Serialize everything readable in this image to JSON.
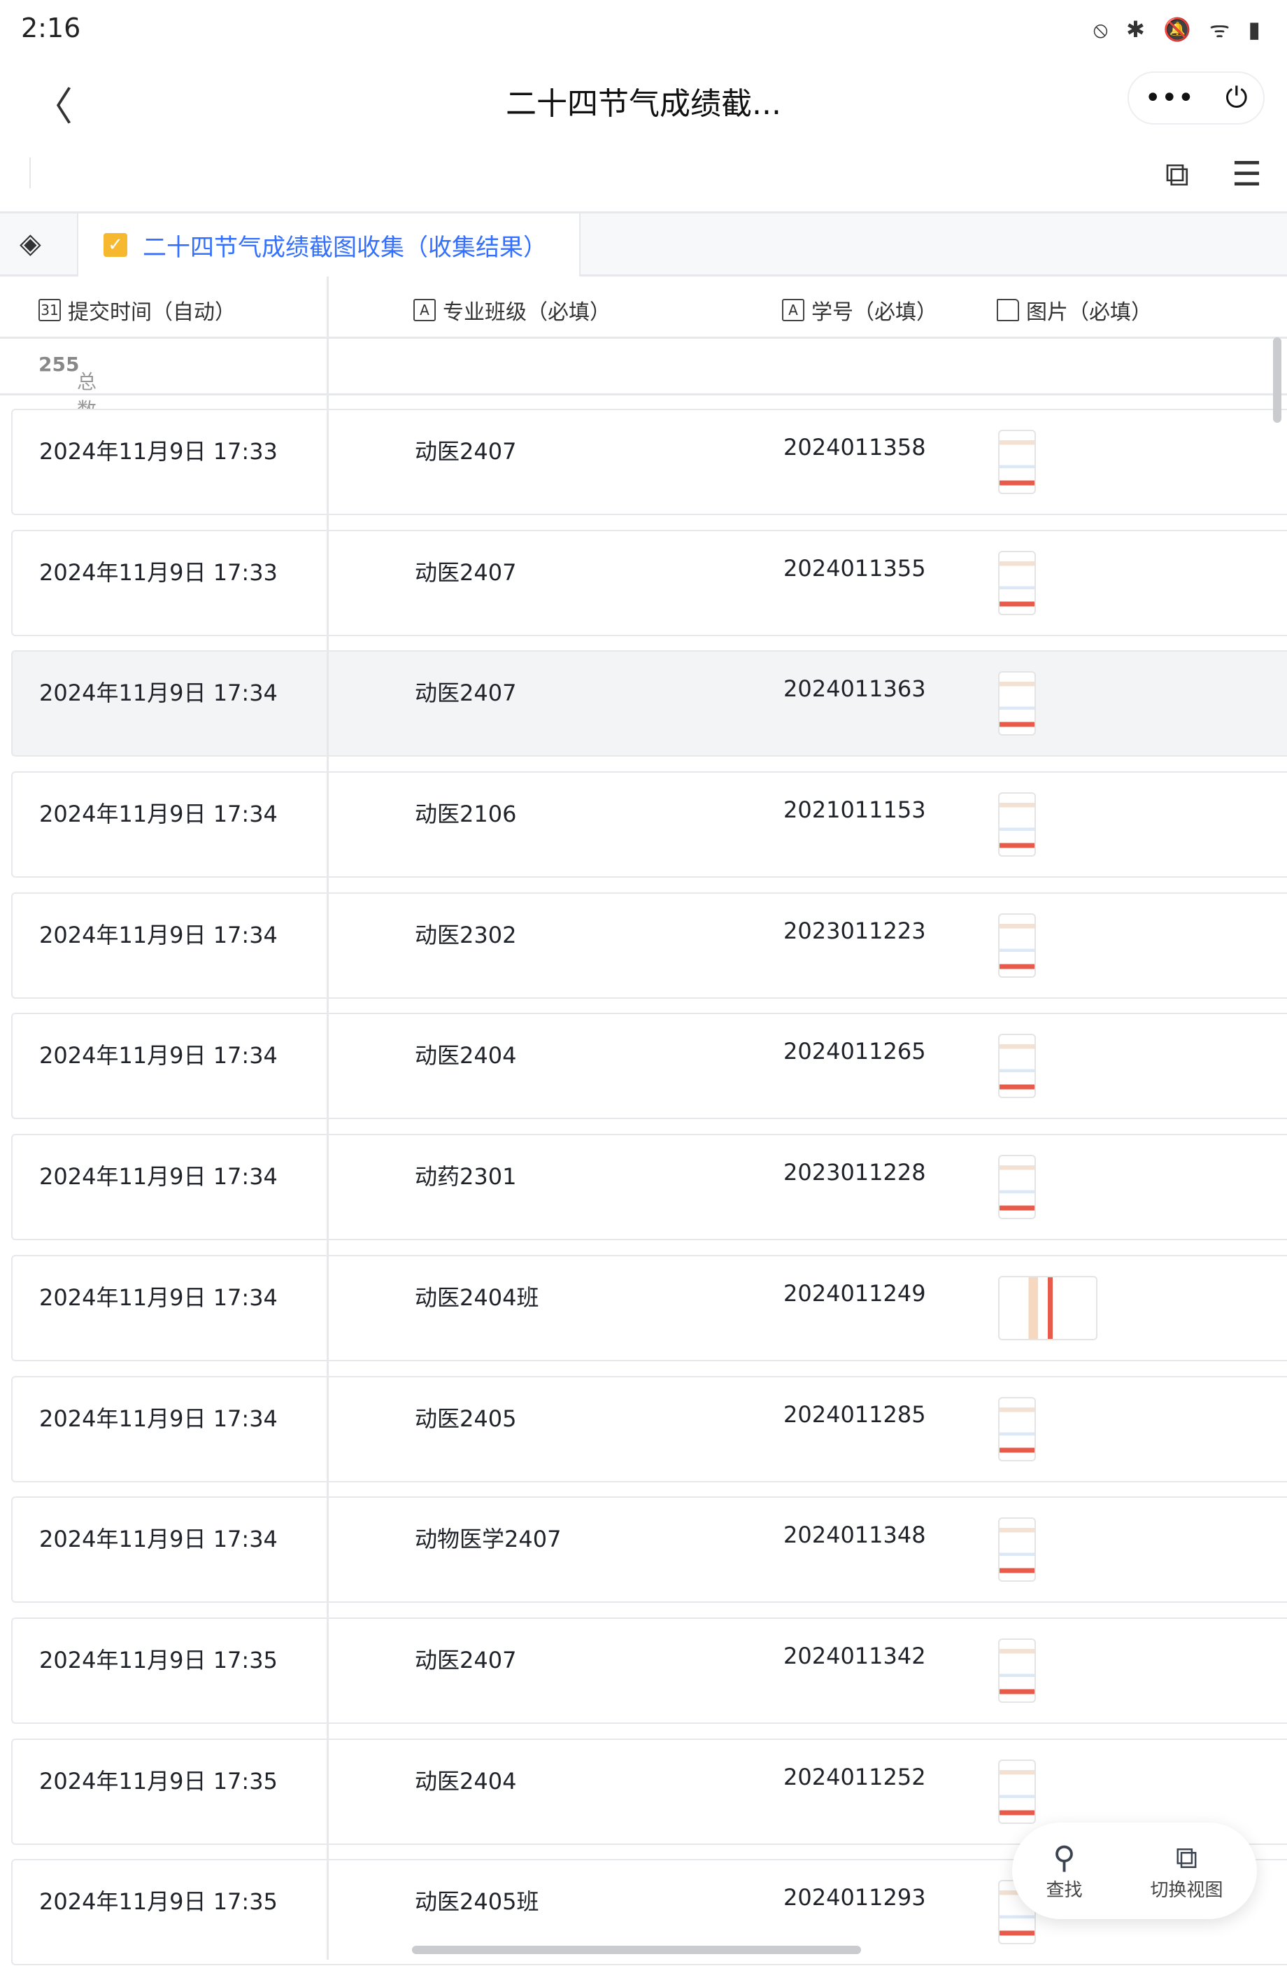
{
  "status": {
    "time": "2:16",
    "icons": [
      "nfc-icon",
      "bluetooth-icon",
      "mute-icon",
      "wifi-icon",
      "battery-icon"
    ]
  },
  "header": {
    "title": "二十四节气成绩截...",
    "more": "•••",
    "power": "⏻",
    "back": "〈"
  },
  "toolbar": {
    "share_icon": "⧉",
    "menu_icon": "☰"
  },
  "sheet_tab": {
    "label": "二十四节气成绩截图收集（收集结果）",
    "check_color": "#f5b82e",
    "accent": "#3370ff"
  },
  "columns": [
    {
      "icon": "31",
      "label": "提交时间（自动）"
    },
    {
      "icon": "A",
      "label": "专业班级（必填）"
    },
    {
      "icon": "A",
      "label": "学号（必填）"
    },
    {
      "icon": "folder",
      "label": "图片（必填）"
    }
  ],
  "total": {
    "label": "总数",
    "value": "255"
  },
  "rows": [
    {
      "time": "2024年11月9日 17:33",
      "class": "动医2407",
      "id": "2024011358"
    },
    {
      "time": "2024年11月9日 17:33",
      "class": "动医2407",
      "id": "2024011355"
    },
    {
      "time": "2024年11月9日 17:34",
      "class": "动医2407",
      "id": "2024011363"
    },
    {
      "time": "2024年11月9日 17:34",
      "class": "动医2106",
      "id": "2021011153"
    },
    {
      "time": "2024年11月9日 17:34",
      "class": "动医2302",
      "id": "2023011223"
    },
    {
      "time": "2024年11月9日 17:34",
      "class": "动医2404",
      "id": "2024011265"
    },
    {
      "time": "2024年11月9日 17:34",
      "class": "动药2301",
      "id": "2023011228"
    },
    {
      "time": "2024年11月9日 17:34",
      "class": "动医2404班",
      "id": "2024011249"
    },
    {
      "time": "2024年11月9日 17:34",
      "class": "动医2405",
      "id": "2024011285"
    },
    {
      "time": "2024年11月9日 17:34",
      "class": "动物医学2407",
      "id": "2024011348"
    },
    {
      "time": "2024年11月9日 17:35",
      "class": "动医2407",
      "id": "2024011342"
    },
    {
      "time": "2024年11月9日 17:35",
      "class": "动医2404",
      "id": "2024011252"
    },
    {
      "time": "2024年11月9日 17:35",
      "class": "动医2405班",
      "id": "2024011293"
    }
  ],
  "fab": {
    "search": "查找",
    "switch_view": "切换视图"
  }
}
